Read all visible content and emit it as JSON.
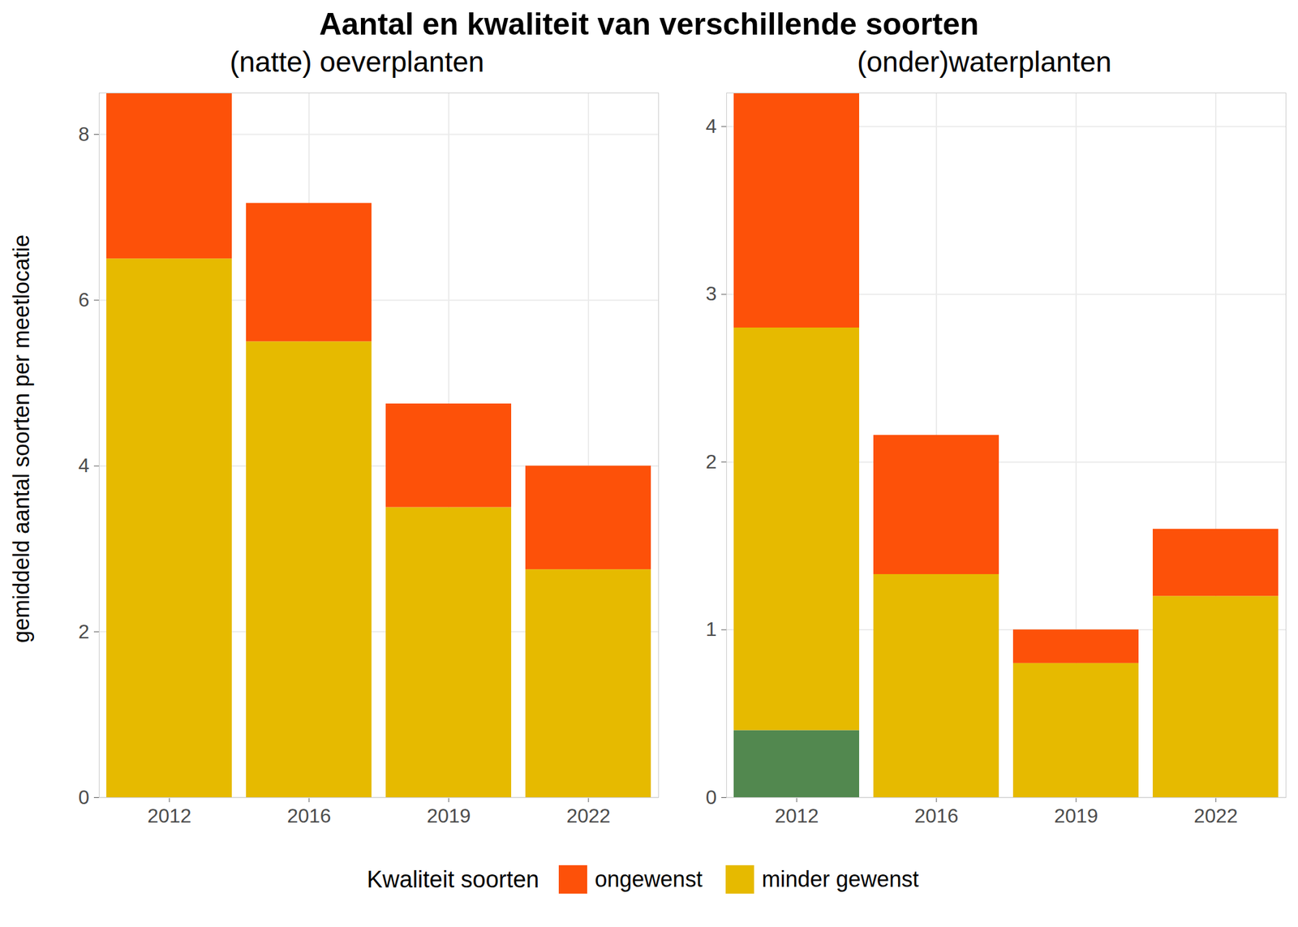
{
  "title": "Aantal en kwaliteit van verschillende soorten",
  "y_label": "gemiddeld aantal soorten per meetlocatie",
  "legend_title": "Kwaliteit soorten",
  "chart_data": [
    {
      "type": "bar",
      "stacked": true,
      "grid": true,
      "legend": "bottom",
      "title": "(natte) oeverplanten",
      "categories": [
        "2012",
        "2016",
        "2019",
        "2022"
      ],
      "series": [
        {
          "name": "minder gewenst",
          "color": "#E6BA00",
          "values": [
            6.5,
            5.5,
            3.5,
            2.75
          ]
        },
        {
          "name": "ongewenst",
          "color": "#FD5109",
          "values": [
            2.0,
            1.67,
            1.25,
            1.25
          ]
        }
      ],
      "ylim": [
        0,
        8.5
      ],
      "yticks": [
        0,
        2,
        4,
        6,
        8
      ]
    },
    {
      "type": "bar",
      "stacked": true,
      "grid": true,
      "legend": "bottom",
      "title": "(onder)waterplanten",
      "categories": [
        "2012",
        "2016",
        "2019",
        "2022"
      ],
      "series": [
        {
          "name": null,
          "color": "#52884F",
          "values": [
            0.4,
            0,
            0,
            0
          ]
        },
        {
          "name": "minder gewenst",
          "color": "#E6BA00",
          "values": [
            2.4,
            1.33,
            0.8,
            1.2
          ]
        },
        {
          "name": "ongewenst",
          "color": "#FD5109",
          "values": [
            1.4,
            0.83,
            0.2,
            0.4
          ]
        }
      ],
      "ylim": [
        0,
        4.2
      ],
      "yticks": [
        0,
        1,
        2,
        3,
        4
      ]
    }
  ]
}
